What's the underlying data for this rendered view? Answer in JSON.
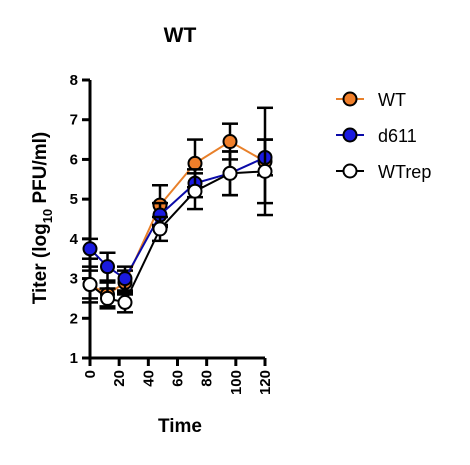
{
  "chart_data": {
    "type": "line",
    "title": "WT",
    "xlabel": "Time",
    "ylabel": "Titer (log",
    "ylabel_sub": "10",
    "ylabel_suffix": " PFU/ml)",
    "xlim": [
      0,
      120
    ],
    "ylim": [
      1,
      8
    ],
    "xticks": [
      0,
      20,
      40,
      60,
      80,
      100,
      120
    ],
    "yticks": [
      1,
      2,
      3,
      4,
      5,
      6,
      7,
      8
    ],
    "grid": false,
    "legend_position": "right",
    "x": [
      0,
      12,
      24,
      48,
      72,
      96,
      120
    ],
    "series": [
      {
        "name": "WT",
        "color": "#e8802a",
        "fill": "#f07f2a",
        "marker": "filled-circle",
        "values": [
          2.85,
          2.6,
          2.9,
          4.85,
          5.9,
          6.45,
          5.95
        ],
        "error": [
          0.35,
          0.3,
          0.3,
          0.5,
          0.6,
          0.45,
          1.35
        ]
      },
      {
        "name": "d611",
        "color": "#0a0aa8",
        "fill": "#1a1ae0",
        "marker": "filled-circle",
        "values": [
          3.75,
          3.3,
          3.0,
          4.6,
          5.4,
          5.65,
          6.05
        ],
        "error": [
          0.25,
          0.35,
          0.3,
          0.3,
          0.35,
          0.55,
          0.45
        ]
      },
      {
        "name": "WTrep",
        "color": "#000000",
        "fill": "#ffffff",
        "marker": "open-circle",
        "values": [
          2.85,
          2.5,
          2.4,
          4.25,
          5.2,
          5.65,
          5.7
        ],
        "error": [
          0.45,
          0.25,
          0.25,
          0.3,
          0.45,
          0.55,
          0.8
        ]
      }
    ]
  }
}
